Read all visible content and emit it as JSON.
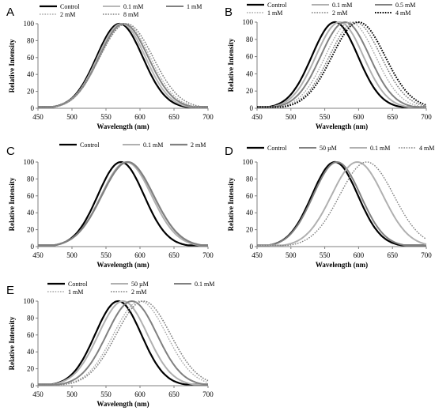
{
  "figure": {
    "panel_count": 5
  },
  "chart_data": [
    {
      "panel": "A",
      "type": "line",
      "xlabel": "Wavelength (nm)",
      "ylabel": "Relative Intensity",
      "xlim": [
        450,
        700
      ],
      "ylim": [
        0,
        100
      ],
      "xticks": [
        450,
        500,
        550,
        600,
        650,
        700
      ],
      "yticks": [
        0,
        20,
        40,
        60,
        80,
        100
      ],
      "grid": false,
      "legend_position": "top",
      "series": [
        {
          "name": "Control",
          "color": "#000000",
          "dash": "solid",
          "width": 2.2,
          "peak": 570,
          "sigma": 34
        },
        {
          "name": "0.1 mM",
          "color": "#b8b8b8",
          "dash": "solid",
          "width": 2,
          "peak": 573,
          "sigma": 35
        },
        {
          "name": "1 mM",
          "color": "#808080",
          "dash": "solid",
          "width": 2,
          "peak": 576,
          "sigma": 36
        },
        {
          "name": "2 mM",
          "color": "#a8a8a8",
          "dash": "dot",
          "width": 1.4,
          "peak": 578,
          "sigma": 37
        },
        {
          "name": "8 mM",
          "color": "#808080",
          "dash": "dot",
          "width": 1.6,
          "peak": 580,
          "sigma": 39
        }
      ]
    },
    {
      "panel": "B",
      "type": "line",
      "xlabel": "Wavelength (nm)",
      "ylabel": "Relative Intensity",
      "xlim": [
        450,
        700
      ],
      "ylim": [
        0,
        100
      ],
      "xticks": [
        450,
        500,
        550,
        600,
        650,
        700
      ],
      "yticks": [
        0,
        20,
        40,
        60,
        80,
        100
      ],
      "grid": false,
      "legend_position": "top",
      "series": [
        {
          "name": "Control",
          "color": "#000000",
          "dash": "solid",
          "width": 2.2,
          "peak": 565,
          "sigma": 34
        },
        {
          "name": "0.1 mM",
          "color": "#b0b0b0",
          "dash": "solid",
          "width": 2,
          "peak": 572,
          "sigma": 35
        },
        {
          "name": "0.5 mM",
          "color": "#808080",
          "dash": "solid",
          "width": 2,
          "peak": 580,
          "sigma": 36
        },
        {
          "name": "1 mM",
          "color": "#a8a8a8",
          "dash": "dot",
          "width": 1.4,
          "peak": 588,
          "sigma": 37
        },
        {
          "name": "2 mM",
          "color": "#808080",
          "dash": "dot",
          "width": 1.6,
          "peak": 595,
          "sigma": 38
        },
        {
          "name": "4 mM",
          "color": "#000000",
          "dash": "dot",
          "width": 2,
          "peak": 600,
          "sigma": 39
        }
      ]
    },
    {
      "panel": "C",
      "type": "line",
      "xlabel": "Wavelength (nm)",
      "ylabel": "Relative Intensity",
      "xlim": [
        450,
        700
      ],
      "ylim": [
        0,
        100
      ],
      "xticks": [
        450,
        500,
        550,
        600,
        650,
        700
      ],
      "yticks": [
        0,
        20,
        40,
        60,
        80,
        100
      ],
      "grid": false,
      "legend_position": "top",
      "series": [
        {
          "name": "Control",
          "color": "#000000",
          "dash": "solid",
          "width": 2.2,
          "peak": 572,
          "sigma": 34
        },
        {
          "name": "0.1 mM",
          "color": "#b0b0b0",
          "dash": "solid",
          "width": 2,
          "peak": 580,
          "sigma": 37
        },
        {
          "name": "2 mM",
          "color": "#808080",
          "dash": "solid",
          "width": 2.2,
          "peak": 582,
          "sigma": 38
        }
      ]
    },
    {
      "panel": "D",
      "type": "line",
      "xlabel": "Wavelength (nm)",
      "ylabel": "Relative Intensity",
      "xlim": [
        450,
        700
      ],
      "ylim": [
        0,
        100
      ],
      "xticks": [
        450,
        500,
        550,
        600,
        650,
        700
      ],
      "yticks": [
        0,
        20,
        40,
        60,
        80,
        100
      ],
      "grid": false,
      "legend_position": "top",
      "series": [
        {
          "name": "Control",
          "color": "#000000",
          "dash": "solid",
          "width": 2.2,
          "peak": 565,
          "sigma": 34
        },
        {
          "name": "50 µM",
          "color": "#808080",
          "dash": "solid",
          "width": 2,
          "peak": 568,
          "sigma": 35
        },
        {
          "name": "0.1 mM",
          "color": "#b0b0b0",
          "dash": "solid",
          "width": 2,
          "peak": 598,
          "sigma": 38
        },
        {
          "name": "4 mM",
          "color": "#808080",
          "dash": "dot",
          "width": 1.4,
          "peak": 612,
          "sigma": 40
        }
      ]
    },
    {
      "panel": "E",
      "type": "line",
      "xlabel": "Wavelength (nm)",
      "ylabel": "Relative Intensity",
      "xlim": [
        450,
        700
      ],
      "ylim": [
        0,
        100
      ],
      "xticks": [
        450,
        500,
        550,
        600,
        650,
        700
      ],
      "yticks": [
        0,
        20,
        40,
        60,
        80,
        100
      ],
      "grid": false,
      "legend_position": "top",
      "series": [
        {
          "name": "Control",
          "color": "#000000",
          "dash": "solid",
          "width": 2.2,
          "peak": 568,
          "sigma": 34
        },
        {
          "name": "50 µM",
          "color": "#b0b0b0",
          "dash": "solid",
          "width": 2,
          "peak": 575,
          "sigma": 36
        },
        {
          "name": "0.1 mM",
          "color": "#808080",
          "dash": "solid",
          "width": 2,
          "peak": 588,
          "sigma": 37
        },
        {
          "name": "1 mM",
          "color": "#a8a8a8",
          "dash": "dot",
          "width": 1.4,
          "peak": 600,
          "sigma": 39
        },
        {
          "name": "2 mM",
          "color": "#808080",
          "dash": "dot",
          "width": 1.6,
          "peak": 605,
          "sigma": 40
        }
      ]
    }
  ]
}
